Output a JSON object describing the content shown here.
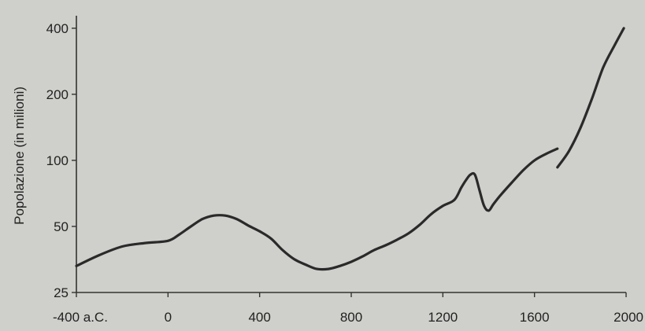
{
  "chart_data": {
    "type": "line",
    "title": "",
    "xlabel": "",
    "ylabel": "Popolazione (in milioni)",
    "yscale": "log",
    "xlim": [
      -400,
      2000
    ],
    "ylim": [
      25,
      420
    ],
    "grid": false,
    "x_ticks": [
      {
        "value": -400,
        "label": "-400 a.C."
      },
      {
        "value": 0,
        "label": "0"
      },
      {
        "value": 400,
        "label": "400"
      },
      {
        "value": 800,
        "label": "800"
      },
      {
        "value": 1200,
        "label": "1200"
      },
      {
        "value": 1600,
        "label": "1600"
      },
      {
        "value": 2000,
        "label": "2000"
      }
    ],
    "y_ticks": [
      {
        "value": 25,
        "label": "25"
      },
      {
        "value": 50,
        "label": "50"
      },
      {
        "value": 100,
        "label": "100"
      },
      {
        "value": 200,
        "label": "200"
      },
      {
        "value": 400,
        "label": "400"
      }
    ],
    "series": [
      {
        "name": "",
        "color": "#2a2a2a",
        "x": [
          -400,
          -300,
          -200,
          -100,
          0,
          50,
          100,
          150,
          200,
          250,
          300,
          350,
          400,
          450,
          500,
          550,
          600,
          650,
          700,
          750,
          800,
          850,
          900,
          950,
          1000,
          1050,
          1100,
          1150,
          1200,
          1250,
          1280,
          1300,
          1320,
          1340,
          1360,
          1380,
          1400,
          1420,
          1450,
          1500,
          1550,
          1600,
          1650,
          1700
        ],
        "y": [
          33,
          37,
          40.5,
          42,
          43,
          46,
          50,
          54,
          56,
          56,
          54,
          50.5,
          47.5,
          44,
          39,
          35.5,
          33.5,
          32,
          32,
          33,
          34.5,
          36.5,
          39,
          41,
          43.5,
          46.5,
          51,
          57,
          62,
          66,
          75,
          81,
          86,
          86,
          73,
          62,
          59,
          63,
          69,
          79,
          90,
          100,
          107,
          113
        ]
      },
      {
        "name": "",
        "color": "#2a2a2a",
        "x": [
          1700,
          1750,
          1800,
          1850,
          1900,
          1950,
          1990
        ],
        "y": [
          93,
          110,
          140,
          190,
          265,
          335,
          400
        ]
      }
    ]
  }
}
